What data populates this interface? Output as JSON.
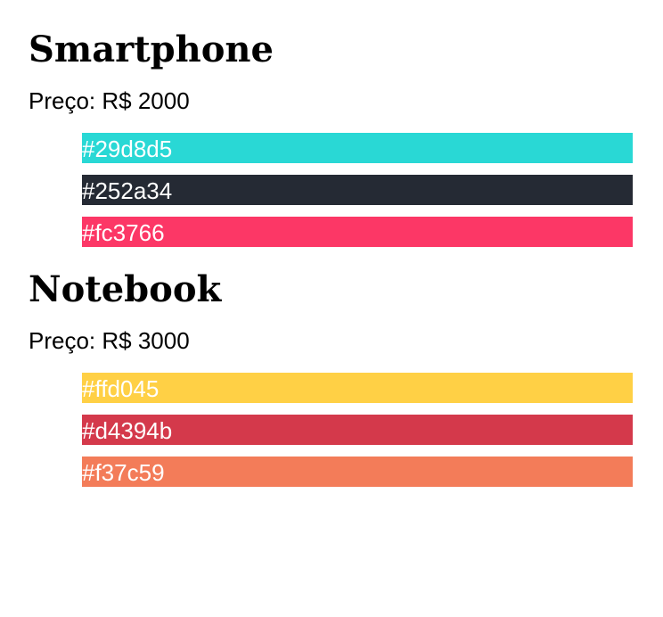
{
  "products": [
    {
      "name": "Smartphone",
      "price_label": "Preço: R$",
      "price": "2000",
      "colors": [
        "#29d8d5",
        "#252a34",
        "#fc3766"
      ]
    },
    {
      "name": "Notebook",
      "price_label": "Preço: R$",
      "price": "3000",
      "colors": [
        "#ffd045",
        "#d4394b",
        "#f37c59"
      ]
    }
  ]
}
